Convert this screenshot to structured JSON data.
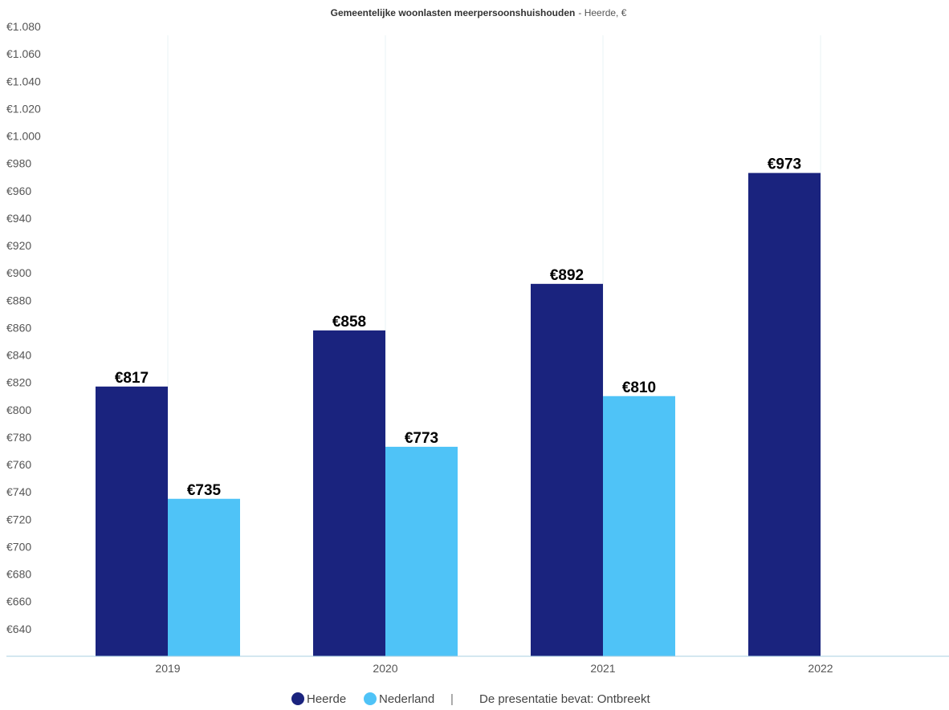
{
  "chart_data": {
    "type": "bar",
    "title": "Gemeentelijke woonlasten meerpersoonshuishouden",
    "subtitle": "- Heerde, €",
    "categories": [
      "2019",
      "2020",
      "2021",
      "2022"
    ],
    "series": [
      {
        "name": "Heerde",
        "color": "#1a237e",
        "values": [
          817,
          858,
          892,
          973
        ],
        "labels": [
          "€817",
          "€858",
          "€892",
          "€973"
        ]
      },
      {
        "name": "Nederland",
        "color": "#4fc3f7",
        "values": [
          735,
          773,
          810,
          null
        ],
        "labels": [
          "€735",
          "€773",
          "€810",
          ""
        ]
      }
    ],
    "ylim": [
      620,
      1080
    ],
    "yticks": [
      640,
      660,
      680,
      700,
      720,
      740,
      760,
      780,
      800,
      820,
      840,
      860,
      880,
      900,
      920,
      940,
      960,
      980,
      1000,
      1020,
      1040,
      1060,
      1080
    ],
    "ytick_labels": [
      "€640",
      "€660",
      "€680",
      "€700",
      "€720",
      "€740",
      "€760",
      "€780",
      "€800",
      "€820",
      "€840",
      "€860",
      "€880",
      "€900",
      "€920",
      "€940",
      "€960",
      "€980",
      "€1.000",
      "€1.020",
      "€1.040",
      "€1.060",
      "€1.080"
    ],
    "legend_position": "bottom-center",
    "legend_note": "De presentatie bevat: Ontbreekt",
    "legend_separator": "|",
    "grid": "vertical"
  },
  "colors": {
    "axis": "#aacfe0",
    "grid": "#eaf3f6",
    "heerde": "#1a237e",
    "nederland": "#4fc3f7"
  }
}
